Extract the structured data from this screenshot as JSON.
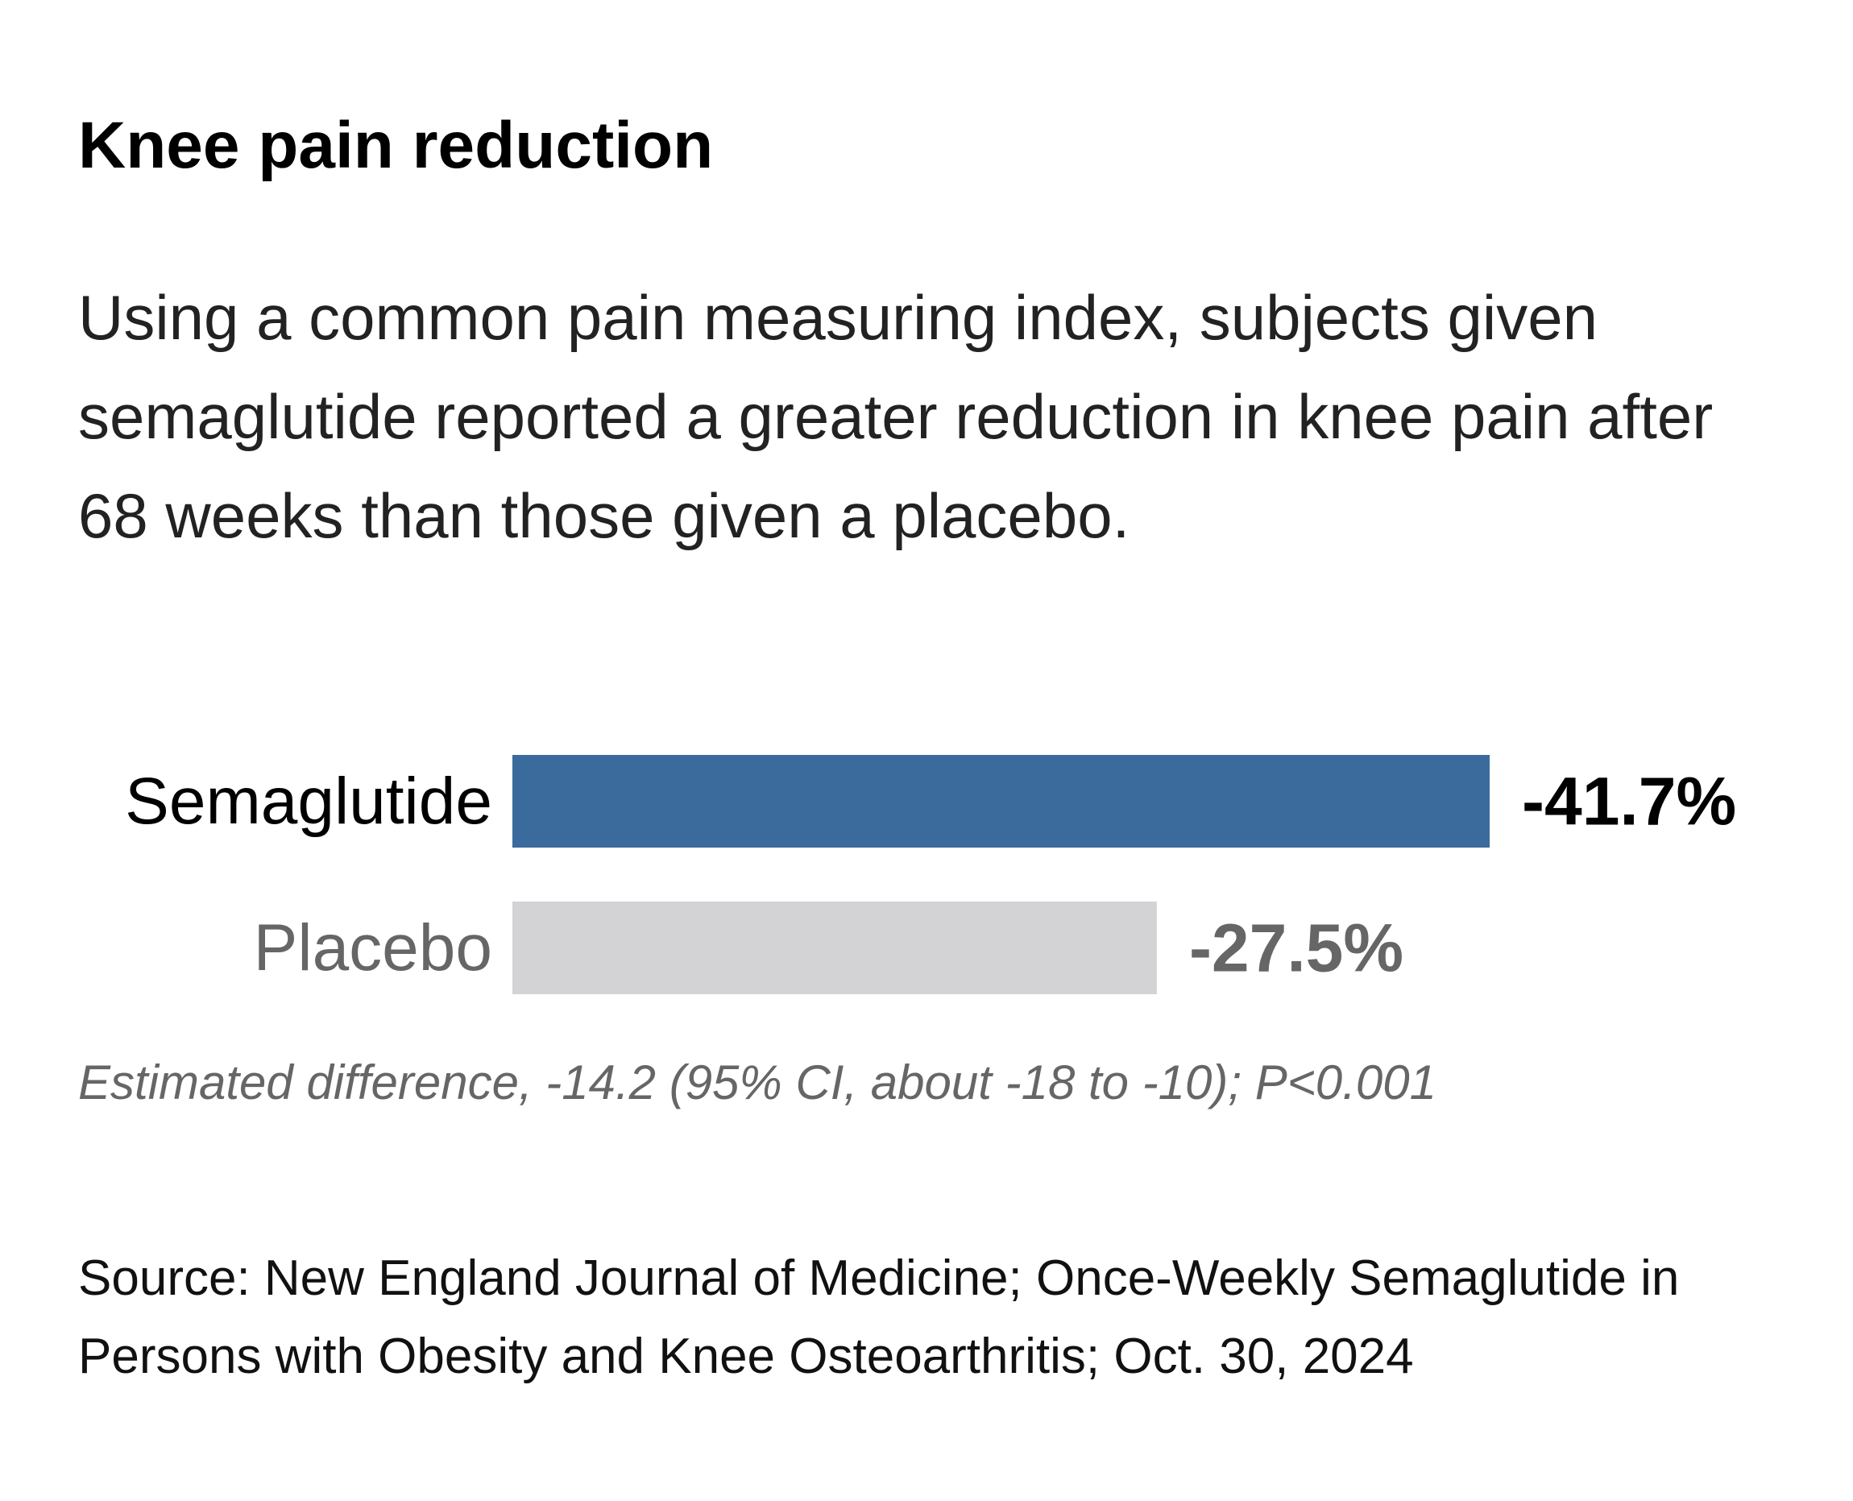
{
  "chart_data": {
    "type": "bar",
    "orientation": "horizontal",
    "title": "Knee pain reduction",
    "subtitle": "Using a common pain measuring index, subjects given semaglutide reported a greater reduction in knee pain after 68 weeks than those given a placebo.",
    "categories": [
      "Semaglutide",
      "Placebo"
    ],
    "values": [
      -41.7,
      -27.5
    ],
    "value_labels": [
      "-41.7%",
      "-27.5%"
    ],
    "xlabel": "",
    "ylabel": "",
    "xlim": [
      0,
      -41.7
    ],
    "grid": false,
    "legend": "none",
    "colors": [
      "#3a6b9c",
      "#d3d3d5"
    ],
    "label_colors": [
      "#000000",
      "#666666"
    ],
    "value_label_colors": [
      "#000000",
      "#666666"
    ],
    "note": "Estimated difference, -14.2 (95% CI, about -18 to -10); P<0.001",
    "source": "Source: New England Journal of Medicine; Once-Weekly Semaglutide in Persons with Obesity and Knee Osteoarthritis; Oct. 30, 2024"
  }
}
